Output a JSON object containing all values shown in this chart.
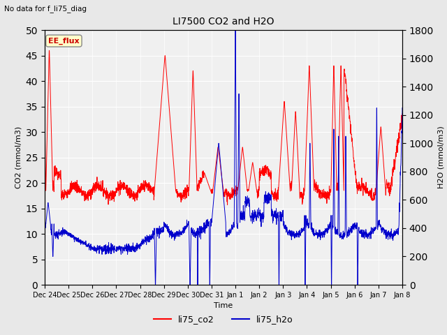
{
  "title": "LI7500 CO2 and H2O",
  "suptitle": "No data for f_li75_diag",
  "xlabel": "Time",
  "ylabel_left": "CO2 (mmol/m3)",
  "ylabel_right": "H2O (mmol/m3)",
  "ylim_left": [
    0,
    50
  ],
  "ylim_right": [
    0,
    1800
  ],
  "yticks_left": [
    0,
    5,
    10,
    15,
    20,
    25,
    30,
    35,
    40,
    45,
    50
  ],
  "yticks_right": [
    0,
    200,
    400,
    600,
    800,
    1000,
    1200,
    1400,
    1600,
    1800
  ],
  "xtick_labels": [
    "Dec 24",
    "Dec 25",
    "Dec 26",
    "Dec 27",
    "Dec 28",
    "Dec 29",
    "Dec 30",
    "Dec 31",
    "Jan 1",
    "Jan 2",
    "Jan 3",
    "Jan 4",
    "Jan 5",
    "Jan 6",
    "Jan 7",
    "Jan 8"
  ],
  "color_co2": "#FF0000",
  "color_h2o": "#0000CC",
  "legend_label_co2": "li75_co2",
  "legend_label_h2o": "li75_h2o",
  "annotation_box": "EE_flux",
  "bg_color": "#E8E8E8",
  "plot_bg_color": "#F0F0F0"
}
